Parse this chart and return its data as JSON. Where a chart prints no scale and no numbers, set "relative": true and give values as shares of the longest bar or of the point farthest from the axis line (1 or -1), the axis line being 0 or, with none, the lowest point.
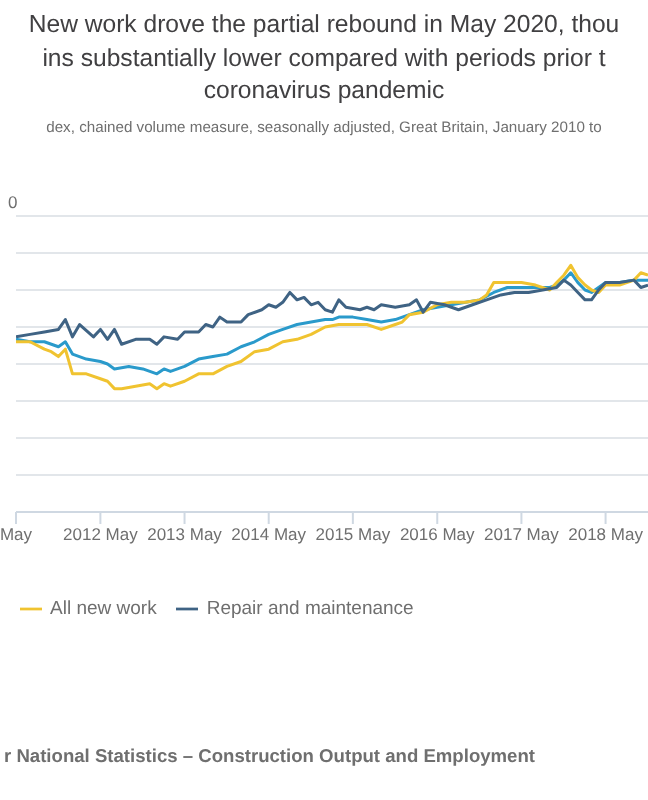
{
  "chart_data": {
    "type": "line",
    "relative": true,
    "title": "New work drove the partial rebound in May 2020, thou\nins substantially lower compared with periods prior t\ncoronavirus pandemic",
    "subtitle": "dex, chained volume measure, seasonally adjusted, Great Britain, January 2010 to",
    "ylabel": "0",
    "xlim": [
      "2011-05",
      "2018-11"
    ],
    "xticks": [
      {
        "value": "2011-05",
        "label": "May"
      },
      {
        "value": "2012-05",
        "label": "2012 May"
      },
      {
        "value": "2013-05",
        "label": "2013 May"
      },
      {
        "value": "2014-05",
        "label": "2014 May"
      },
      {
        "value": "2015-05",
        "label": "2015 May"
      },
      {
        "value": "2016-05",
        "label": "2016 May"
      },
      {
        "value": "2017-05",
        "label": "2017 May"
      },
      {
        "value": "2018-05",
        "label": "2018 May"
      }
    ],
    "grid": "y",
    "legend": "bottom left",
    "series": [
      {
        "color": "#2a9acb",
        "x": [
          "2011-05",
          "2011-07",
          "2011-09",
          "2011-11",
          "2011-12",
          "2012-01",
          "2012-03",
          "2012-05",
          "2012-06",
          "2012-07",
          "2012-09",
          "2012-11",
          "2013-01",
          "2013-02",
          "2013-03",
          "2013-05",
          "2013-07",
          "2013-09",
          "2013-11",
          "2014-01",
          "2014-03",
          "2014-05",
          "2014-07",
          "2014-09",
          "2014-11",
          "2015-01",
          "2015-02",
          "2015-03",
          "2015-05",
          "2015-07",
          "2015-09",
          "2015-11",
          "2016-01",
          "2016-03",
          "2016-05",
          "2016-07",
          "2016-09",
          "2016-11",
          "2017-01",
          "2017-03",
          "2017-05",
          "2017-07",
          "2017-09",
          "2017-10",
          "2017-11",
          "2017-12",
          "2018-01",
          "2018-02",
          "2018-03",
          "2018-05",
          "2018-07",
          "2018-09",
          "2018-11"
        ],
        "values": [
          0.7,
          0.69,
          0.69,
          0.67,
          0.69,
          0.64,
          0.62,
          0.61,
          0.6,
          0.58,
          0.59,
          0.58,
          0.56,
          0.58,
          0.57,
          0.59,
          0.62,
          0.63,
          0.64,
          0.67,
          0.69,
          0.72,
          0.74,
          0.76,
          0.77,
          0.78,
          0.78,
          0.79,
          0.79,
          0.78,
          0.77,
          0.78,
          0.8,
          0.82,
          0.83,
          0.84,
          0.85,
          0.86,
          0.89,
          0.91,
          0.91,
          0.91,
          0.91,
          0.92,
          0.94,
          0.97,
          0.93,
          0.9,
          0.89,
          0.93,
          0.93,
          0.94,
          0.94
        ]
      },
      {
        "name": "All new work",
        "color": "#f0c330",
        "x": [
          "2011-05",
          "2011-07",
          "2011-09",
          "2011-10",
          "2011-11",
          "2011-12",
          "2012-01",
          "2012-03",
          "2012-05",
          "2012-06",
          "2012-07",
          "2012-08",
          "2012-10",
          "2012-12",
          "2013-01",
          "2013-02",
          "2013-03",
          "2013-05",
          "2013-07",
          "2013-09",
          "2013-11",
          "2014-01",
          "2014-03",
          "2014-05",
          "2014-07",
          "2014-09",
          "2014-11",
          "2015-01",
          "2015-03",
          "2015-05",
          "2015-07",
          "2015-09",
          "2015-11",
          "2015-12",
          "2016-01",
          "2016-03",
          "2016-05",
          "2016-07",
          "2016-09",
          "2016-11",
          "2016-12",
          "2017-01",
          "2017-03",
          "2017-05",
          "2017-07",
          "2017-09",
          "2017-10",
          "2017-11",
          "2017-12",
          "2018-01",
          "2018-02",
          "2018-03",
          "2018-04",
          "2018-05",
          "2018-07",
          "2018-09",
          "2018-10",
          "2018-11"
        ],
        "values": [
          0.69,
          0.69,
          0.66,
          0.65,
          0.63,
          0.66,
          0.56,
          0.56,
          0.54,
          0.53,
          0.5,
          0.5,
          0.51,
          0.52,
          0.5,
          0.52,
          0.51,
          0.53,
          0.56,
          0.56,
          0.59,
          0.61,
          0.65,
          0.66,
          0.69,
          0.7,
          0.72,
          0.75,
          0.76,
          0.76,
          0.76,
          0.74,
          0.76,
          0.77,
          0.8,
          0.81,
          0.84,
          0.85,
          0.85,
          0.86,
          0.88,
          0.93,
          0.93,
          0.93,
          0.92,
          0.9,
          0.93,
          0.96,
          1.0,
          0.95,
          0.92,
          0.9,
          0.89,
          0.92,
          0.92,
          0.94,
          0.97,
          0.96
        ]
      },
      {
        "name": "Repair and maintenance",
        "color": "#3f6384",
        "x": [
          "2011-05",
          "2011-07",
          "2011-09",
          "2011-11",
          "2011-12",
          "2012-01",
          "2012-02",
          "2012-04",
          "2012-05",
          "2012-06",
          "2012-07",
          "2012-08",
          "2012-10",
          "2012-12",
          "2013-01",
          "2013-02",
          "2013-04",
          "2013-05",
          "2013-07",
          "2013-08",
          "2013-09",
          "2013-10",
          "2013-11",
          "2014-01",
          "2014-02",
          "2014-04",
          "2014-05",
          "2014-06",
          "2014-07",
          "2014-08",
          "2014-09",
          "2014-10",
          "2014-11",
          "2014-12",
          "2015-01",
          "2015-02",
          "2015-03",
          "2015-04",
          "2015-06",
          "2015-07",
          "2015-08",
          "2015-09",
          "2015-11",
          "2016-01",
          "2016-02",
          "2016-03",
          "2016-04",
          "2016-06",
          "2016-08",
          "2016-10",
          "2016-12",
          "2017-02",
          "2017-04",
          "2017-06",
          "2017-08",
          "2017-10",
          "2017-11",
          "2017-12",
          "2018-01",
          "2018-02",
          "2018-03",
          "2018-04",
          "2018-05",
          "2018-07",
          "2018-09",
          "2018-10",
          "2018-11"
        ],
        "values": [
          0.71,
          0.72,
          0.73,
          0.74,
          0.78,
          0.71,
          0.76,
          0.71,
          0.74,
          0.7,
          0.74,
          0.68,
          0.7,
          0.7,
          0.68,
          0.71,
          0.7,
          0.73,
          0.73,
          0.76,
          0.75,
          0.79,
          0.77,
          0.77,
          0.8,
          0.82,
          0.84,
          0.83,
          0.85,
          0.89,
          0.86,
          0.87,
          0.84,
          0.85,
          0.82,
          0.81,
          0.86,
          0.83,
          0.82,
          0.83,
          0.82,
          0.84,
          0.83,
          0.84,
          0.86,
          0.81,
          0.85,
          0.84,
          0.82,
          0.84,
          0.86,
          0.88,
          0.89,
          0.89,
          0.9,
          0.91,
          0.94,
          0.92,
          0.89,
          0.86,
          0.86,
          0.9,
          0.93,
          0.93,
          0.94,
          0.91,
          0.92
        ]
      }
    ],
    "annotations": [
      "r National Statistics – Construction Output and Employment"
    ]
  }
}
